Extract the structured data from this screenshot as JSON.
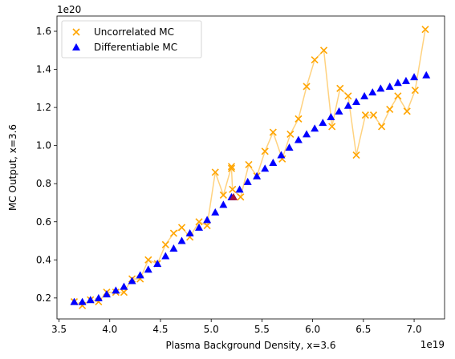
{
  "chart_data": {
    "type": "scatter",
    "xlabel": "Plasma Background Density, x=3.6",
    "ylabel": "MC Output, x=3.6",
    "x_offset_label": "1e19",
    "y_offset_label": "1e20",
    "x_scale": 1e+19,
    "y_scale": 1e+20,
    "xlim": [
      3.48,
      7.3
    ],
    "ylim": [
      0.09,
      1.68
    ],
    "xticks": [
      3.5,
      4.0,
      4.5,
      5.0,
      5.5,
      6.0,
      6.5,
      7.0
    ],
    "xtick_labels": [
      "3.5",
      "4.0",
      "4.5",
      "5.0",
      "5.5",
      "6.0",
      "6.5",
      "7.0"
    ],
    "yticks": [
      0.2,
      0.4,
      0.6,
      0.8,
      1.0,
      1.2,
      1.4,
      1.6
    ],
    "ytick_labels": [
      "0.2",
      "0.4",
      "0.6",
      "0.8",
      "1.0",
      "1.2",
      "1.4",
      "1.6"
    ],
    "grid": false,
    "legend_position": "top-left",
    "highlight_point": {
      "x": 5.22,
      "y": 0.73,
      "color": "#a0103e"
    },
    "series": [
      {
        "name": "Uncorrelated MC",
        "marker": "x",
        "color": "#ffa500",
        "line_color": "#ffd27f",
        "x": [
          3.65,
          3.73,
          3.81,
          3.89,
          3.97,
          4.06,
          4.14,
          4.22,
          4.3,
          4.38,
          4.47,
          4.55,
          4.63,
          4.71,
          4.79,
          4.88,
          4.96,
          5.04,
          5.12,
          5.2,
          5.2,
          5.21,
          5.29,
          5.37,
          5.45,
          5.53,
          5.61,
          5.7,
          5.78,
          5.86,
          5.94,
          6.02,
          6.11,
          6.19,
          6.27,
          6.35,
          6.43,
          6.52,
          6.6,
          6.68,
          6.76,
          6.84,
          6.93,
          7.01,
          7.11
        ],
        "y": [
          0.18,
          0.16,
          0.19,
          0.18,
          0.23,
          0.23,
          0.23,
          0.3,
          0.3,
          0.4,
          0.38,
          0.48,
          0.54,
          0.57,
          0.52,
          0.6,
          0.58,
          0.86,
          0.74,
          0.89,
          0.88,
          0.77,
          0.73,
          0.9,
          0.84,
          0.97,
          1.07,
          0.93,
          1.06,
          1.14,
          1.31,
          1.45,
          1.5,
          1.1,
          1.3,
          1.26,
          0.95,
          1.16,
          1.16,
          1.1,
          1.19,
          1.26,
          1.18,
          1.29,
          1.61
        ]
      },
      {
        "name": "Differentiable MC",
        "marker": "triangle",
        "color": "#0000ff",
        "x": [
          3.65,
          3.73,
          3.81,
          3.89,
          3.97,
          4.06,
          4.14,
          4.22,
          4.3,
          4.38,
          4.47,
          4.55,
          4.63,
          4.71,
          4.79,
          4.88,
          4.96,
          5.04,
          5.12,
          5.2,
          5.28,
          5.36,
          5.45,
          5.53,
          5.61,
          5.69,
          5.77,
          5.86,
          5.94,
          6.02,
          6.1,
          6.18,
          6.26,
          6.35,
          6.43,
          6.51,
          6.59,
          6.67,
          6.76,
          6.84,
          6.92,
          7.0,
          7.12
        ],
        "y": [
          0.18,
          0.18,
          0.19,
          0.2,
          0.22,
          0.24,
          0.26,
          0.29,
          0.32,
          0.35,
          0.38,
          0.42,
          0.46,
          0.5,
          0.54,
          0.57,
          0.61,
          0.65,
          0.69,
          0.73,
          0.77,
          0.81,
          0.84,
          0.88,
          0.91,
          0.95,
          0.99,
          1.03,
          1.06,
          1.09,
          1.12,
          1.15,
          1.18,
          1.21,
          1.23,
          1.26,
          1.28,
          1.3,
          1.31,
          1.33,
          1.34,
          1.36,
          1.37
        ]
      }
    ]
  }
}
